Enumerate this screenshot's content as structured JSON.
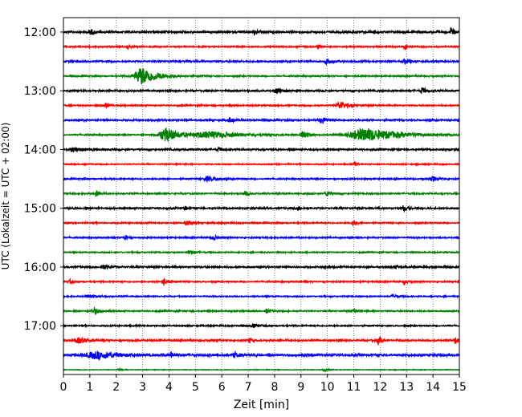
{
  "chart_data": {
    "type": "line",
    "chart_kind": "helicorder seismogram",
    "xlabel": "Zeit  [min]",
    "ylabel": "UTC (Lokalzeit = UTC + 02:00)",
    "xlim": [
      0,
      15
    ],
    "xticks": [
      0,
      1,
      2,
      3,
      4,
      5,
      6,
      7,
      8,
      9,
      10,
      11,
      12,
      13,
      14,
      15
    ],
    "grid_x": true,
    "trace_minutes": 15,
    "trace_start_times": [
      "12:00",
      "12:15",
      "12:30",
      "12:45",
      "13:00",
      "13:15",
      "13:30",
      "13:45",
      "14:00",
      "14:15",
      "14:30",
      "14:45",
      "15:00",
      "15:15",
      "15:30",
      "15:45",
      "16:00",
      "16:15",
      "16:30",
      "16:45",
      "17:00",
      "17:15",
      "17:30",
      "17:45"
    ],
    "y_tick_labels": [
      "12:00",
      "13:00",
      "14:00",
      "15:00",
      "16:00",
      "17:00"
    ],
    "trace_colors": [
      "#000000",
      "#ff0000",
      "#0000ff",
      "#008000"
    ],
    "traces": [
      {
        "start": "12:00",
        "noise": 0.18,
        "events": [
          [
            1.05,
            0.35,
            0.15
          ],
          [
            7.25,
            0.4,
            0.15
          ],
          [
            14.7,
            0.7,
            0.1
          ]
        ]
      },
      {
        "start": "12:15",
        "noise": 0.12,
        "events": [
          [
            2.45,
            0.3,
            0.1
          ],
          [
            9.65,
            0.35,
            0.1
          ],
          [
            12.95,
            0.45,
            0.12
          ]
        ]
      },
      {
        "start": "12:30",
        "noise": 0.15,
        "events": [
          [
            10.0,
            0.45,
            0.2
          ],
          [
            12.95,
            0.4,
            0.15
          ]
        ]
      },
      {
        "start": "12:45",
        "noise": 0.12,
        "events": [
          [
            3.0,
            1.4,
            0.6
          ]
        ]
      },
      {
        "start": "13:00",
        "noise": 0.15,
        "events": [
          [
            8.1,
            0.5,
            0.2
          ],
          [
            13.6,
            0.5,
            0.15
          ]
        ]
      },
      {
        "start": "13:15",
        "noise": 0.12,
        "events": [
          [
            1.6,
            0.4,
            0.15
          ],
          [
            10.5,
            0.6,
            0.3
          ]
        ]
      },
      {
        "start": "13:30",
        "noise": 0.15,
        "events": [
          [
            6.3,
            0.4,
            0.15
          ],
          [
            9.8,
            0.5,
            0.2
          ]
        ]
      },
      {
        "start": "13:45",
        "noise": 0.12,
        "events": [
          [
            3.9,
            1.1,
            0.5
          ],
          [
            5.6,
            0.5,
            1.2
          ],
          [
            9.1,
            0.7,
            0.2
          ],
          [
            11.5,
            1.0,
            1.3
          ]
        ]
      },
      {
        "start": "14:00",
        "noise": 0.15,
        "events": [
          [
            0.4,
            0.4,
            0.3
          ],
          [
            5.9,
            0.3,
            0.1
          ]
        ]
      },
      {
        "start": "14:15",
        "noise": 0.1,
        "events": [
          [
            11.05,
            0.4,
            0.08
          ]
        ]
      },
      {
        "start": "14:30",
        "noise": 0.12,
        "events": [
          [
            5.5,
            0.35,
            0.4
          ],
          [
            14.0,
            0.4,
            0.2
          ]
        ]
      },
      {
        "start": "14:45",
        "noise": 0.12,
        "events": [
          [
            1.25,
            0.55,
            0.1
          ],
          [
            6.9,
            0.35,
            0.15
          ],
          [
            10.0,
            0.35,
            0.2
          ]
        ]
      },
      {
        "start": "15:00",
        "noise": 0.15,
        "events": [
          [
            4.6,
            0.35,
            0.1
          ],
          [
            8.9,
            0.4,
            0.08
          ],
          [
            12.9,
            0.4,
            0.15
          ]
        ]
      },
      {
        "start": "15:15",
        "noise": 0.12,
        "events": [
          [
            4.7,
            0.35,
            0.2
          ],
          [
            11.0,
            0.4,
            0.15
          ]
        ]
      },
      {
        "start": "15:30",
        "noise": 0.12,
        "events": [
          [
            2.35,
            0.45,
            0.1
          ],
          [
            5.7,
            0.4,
            0.15
          ]
        ]
      },
      {
        "start": "15:45",
        "noise": 0.1,
        "events": [
          [
            4.8,
            0.3,
            0.2
          ]
        ]
      },
      {
        "start": "16:00",
        "noise": 0.15,
        "events": [
          [
            1.5,
            0.4,
            0.2
          ],
          [
            9.9,
            0.35,
            0.08
          ],
          [
            12.6,
            0.35,
            0.1
          ]
        ]
      },
      {
        "start": "16:15",
        "noise": 0.12,
        "events": [
          [
            0.25,
            0.3,
            0.08
          ],
          [
            3.8,
            0.6,
            0.15
          ],
          [
            12.9,
            0.45,
            0.1
          ]
        ]
      },
      {
        "start": "16:30",
        "noise": 0.1,
        "events": [
          [
            1.0,
            0.3,
            0.3
          ],
          [
            12.5,
            0.3,
            0.15
          ]
        ]
      },
      {
        "start": "16:45",
        "noise": 0.12,
        "events": [
          [
            1.2,
            0.5,
            0.2
          ],
          [
            7.7,
            0.35,
            0.1
          ],
          [
            11.0,
            0.35,
            0.12
          ]
        ]
      },
      {
        "start": "17:00",
        "noise": 0.12,
        "events": [
          [
            7.2,
            0.3,
            0.2
          ]
        ]
      },
      {
        "start": "17:15",
        "noise": 0.15,
        "events": [
          [
            0.6,
            0.45,
            0.25
          ],
          [
            7.05,
            0.45,
            0.1
          ],
          [
            11.95,
            0.55,
            0.15
          ],
          [
            14.85,
            0.55,
            0.1
          ]
        ]
      },
      {
        "start": "17:30",
        "noise": 0.2,
        "events": [
          [
            1.3,
            0.55,
            0.8
          ],
          [
            4.1,
            0.55,
            0.1
          ],
          [
            6.5,
            0.35,
            0.2
          ]
        ]
      },
      {
        "start": "17:45",
        "noise": 0.06,
        "events": [
          [
            2.1,
            0.25,
            0.1
          ],
          [
            9.9,
            0.2,
            0.1
          ]
        ]
      }
    ]
  }
}
